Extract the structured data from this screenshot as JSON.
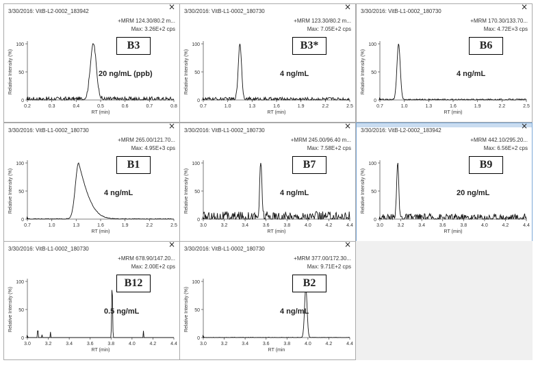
{
  "axis_label_y": "Relative Intensity (%)",
  "axis_label_x": "RT (min)",
  "close_glyph": "×",
  "colors": {
    "trace": "#111111",
    "panel_border": "#a9a9a9",
    "selected_border": "#7aa7d6",
    "selected_bar": "#c9dcf0",
    "empty": "#f0f0f0"
  },
  "chart_data": [
    {
      "type": "line",
      "tag": "B3",
      "sample": "3/30/2016: VitB-L2-0002_183942",
      "mrm": "+MRM 124.30/80.2 m...",
      "max": "Max: 3.26E+2 cps",
      "concentration": "20 ng/mL (ppb)",
      "xlim": [
        0.2,
        0.8
      ],
      "xticks": [
        "0.2",
        "0.3",
        "0.4",
        "0.5",
        "0.6",
        "0.7",
        "0.8"
      ],
      "yticks": [
        "0",
        "50",
        "100"
      ],
      "ylim": [
        0,
        100
      ],
      "peaks": [
        [
          0.47,
          100,
          0.012
        ]
      ],
      "noise": 6,
      "xlabel": "RT (min)",
      "ylabel": "Relative Intensity (%)"
    },
    {
      "type": "line",
      "tag": "B3*",
      "sample": "3/30/2016: VitB-L1-0002_180730",
      "mrm": "+MRM 123.30/80.2 m...",
      "max": "Max: 7.05E+2 cps",
      "concentration": "4 ng/mL",
      "xlim": [
        0.7,
        2.5
      ],
      "xticks": [
        "0.7",
        "1.0",
        "1.3",
        "1.6",
        "1.9",
        "2.2",
        "2.5"
      ],
      "yticks": [
        "0",
        "50",
        "100"
      ],
      "ylim": [
        0,
        100
      ],
      "peaks": [
        [
          1.15,
          100,
          0.02
        ]
      ],
      "noise": 5,
      "xlabel": "RT (min)",
      "ylabel": "Relative Intensity (%)"
    },
    {
      "type": "line",
      "tag": "B6",
      "sample": "3/30/2016: VitB-L1-0002_180730",
      "mrm": "+MRM 170.30/133.70...",
      "max": "Max: 4.72E+3 cps",
      "concentration": "4 ng/mL",
      "xlim": [
        0.7,
        2.5
      ],
      "xticks": [
        "0.7",
        "1.0",
        "1.3",
        "1.6",
        "1.9",
        "2.2",
        "2.5"
      ],
      "yticks": [
        "0",
        "50",
        "100"
      ],
      "ylim": [
        0,
        100
      ],
      "peaks": [
        [
          0.93,
          100,
          0.02
        ]
      ],
      "noise": 2,
      "xlabel": "RT (min)",
      "ylabel": "Relative Intensity (%)"
    },
    {
      "type": "line",
      "tag": "B1",
      "sample": "3/30/2016: VitB-L1-0002_180730",
      "mrm": "+MRM 265.00/121.70...",
      "max": "Max: 4.95E+3 cps",
      "concentration": "4 ng/mL",
      "xlim": [
        0.7,
        2.5
      ],
      "xticks": [
        "0.7",
        "1.0",
        "1.3",
        "1.6",
        "1.9",
        "2.2",
        "2.5"
      ],
      "yticks": [
        "0",
        "50",
        "100"
      ],
      "ylim": [
        0,
        100
      ],
      "peaks": [
        [
          1.33,
          100,
          0.04
        ]
      ],
      "tail": 0.18,
      "noise": 1,
      "xlabel": "RT (min)",
      "ylabel": "Relative Intensity (%)"
    },
    {
      "type": "line",
      "tag": "B7",
      "sample": "3/30/2016: VitB-L1-0002_180730",
      "mrm": "+MRM 245.00/96.40 m...",
      "max": "Max: 7.58E+2 cps",
      "concentration": "4 ng/mL",
      "xlim": [
        3.0,
        4.4
      ],
      "xticks": [
        "3.0",
        "3.2",
        "3.4",
        "3.6",
        "3.8",
        "4.0",
        "4.2",
        "4.4"
      ],
      "yticks": [
        "0",
        "50",
        "100"
      ],
      "ylim": [
        0,
        100
      ],
      "peaks": [
        [
          3.55,
          100,
          0.01
        ]
      ],
      "noise": 14,
      "xlabel": "RT (min)",
      "ylabel": "Relative Intensity (%)"
    },
    {
      "type": "line",
      "tag": "B9",
      "sample": "3/30/2016: VitB-L2-0002_183942",
      "mrm": "+MRM 442.10/295.20...",
      "max": "Max: 6.56E+2 cps",
      "concentration": "20 ng/mL",
      "xlim": [
        3.0,
        4.4
      ],
      "xticks": [
        "3.0",
        "3.2",
        "3.4",
        "3.6",
        "3.8",
        "4.0",
        "4.2",
        "4.4"
      ],
      "yticks": [
        "0",
        "50",
        "100"
      ],
      "ylim": [
        0,
        100
      ],
      "peaks": [
        [
          3.17,
          100,
          0.01
        ]
      ],
      "noise": 10,
      "selected": true,
      "xlabel": "RT (min)",
      "ylabel": "Relative Intensity (%)"
    },
    {
      "type": "line",
      "tag": "B12",
      "sample": "3/30/2016: VitB-L1-0002_180730",
      "mrm": "+MRM 678.90/147.20...",
      "max": "Max: 2.00E+2 cps",
      "concentration": "0.5 ng/mL",
      "xlim": [
        3.0,
        4.4
      ],
      "xticks": [
        "3.0",
        "3.2",
        "3.4",
        "3.6",
        "3.8",
        "4.0",
        "4.2",
        "4.4"
      ],
      "yticks": [
        "0",
        "50",
        "100"
      ],
      "ylim": [
        0,
        100
      ],
      "peaks": [
        [
          3.81,
          100,
          0.004
        ]
      ],
      "spikes": [
        [
          3.1,
          12
        ],
        [
          3.22,
          10
        ],
        [
          4.11,
          12
        ],
        [
          3.14,
          5
        ]
      ],
      "noise": 0,
      "xlabel": "RT (min)",
      "ylabel": "Relative Intensity (%)"
    },
    {
      "type": "line",
      "tag": "B2",
      "sample": "3/30/2016: VitB-L1-0002_180730",
      "mrm": "+MRM 377.00/172.30...",
      "max": "Max: 9.71E+2 cps",
      "concentration": "4 ng/mL",
      "xlim": [
        3.0,
        4.4
      ],
      "xticks": [
        "3.0",
        "3.2",
        "3.4",
        "3.6",
        "3.8",
        "4.0",
        "4.2",
        "4.4"
      ],
      "yticks": [
        "0",
        "50",
        "100"
      ],
      "ylim": [
        0,
        100
      ],
      "peaks": [
        [
          3.98,
          90,
          0.012
        ]
      ],
      "noise": 0.6,
      "xlabel": "RT (min",
      "ylabel": "Relative Intensity (%)"
    }
  ]
}
